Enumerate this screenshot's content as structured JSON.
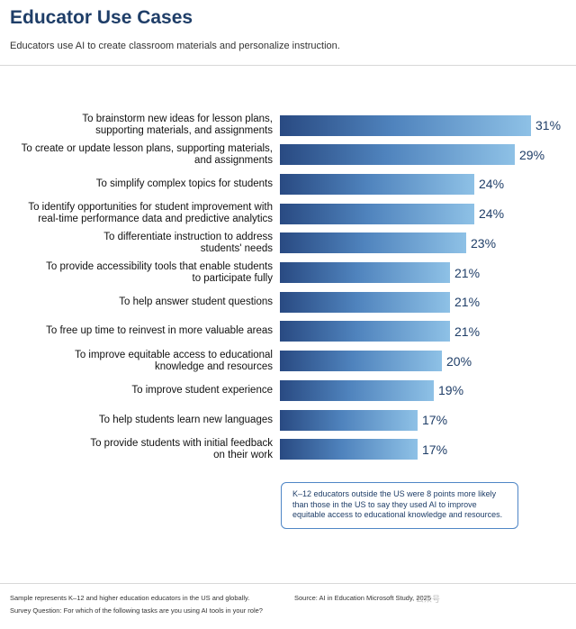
{
  "header": {
    "title": "Educator Use Cases",
    "subtitle": "Educators use AI to create classroom materials and personalize instruction."
  },
  "chart_data": {
    "type": "bar",
    "orientation": "horizontal",
    "categories": [
      "To brainstorm new ideas for lesson plans,\nsupporting materials, and assignments",
      "To create or update lesson plans, supporting materials,\nand assignments",
      "To simplify complex topics for students",
      "To identify opportunities for student improvement with\nreal-time performance data and predictive analytics",
      "To differentiate instruction to address\nstudents' needs",
      "To provide accessibility tools that enable students\nto participate fully",
      "To help answer student questions",
      "To free up time to reinvest in more valuable areas",
      "To improve equitable access to educational\nknowledge and resources",
      "To improve student experience",
      "To help students learn new languages",
      "To provide students with initial feedback\non their work"
    ],
    "values": [
      31,
      29,
      24,
      24,
      23,
      21,
      21,
      21,
      20,
      19,
      17,
      17
    ],
    "value_labels": [
      "31%",
      "29%",
      "24%",
      "24%",
      "23%",
      "21%",
      "21%",
      "21%",
      "20%",
      "19%",
      "17%",
      "17%"
    ],
    "unit": "%",
    "xlim": [
      0,
      31
    ],
    "grid": false,
    "legend": "none",
    "colors": {
      "bar_start": "#294a82",
      "bar_end": "#8ec1e6",
      "value_text": "#1f3e68"
    }
  },
  "callout": {
    "text": "K–12 educators outside the US were 8 points more likely than those in the US to say they used AI to improve equitable access to educational knowledge and resources."
  },
  "footer": {
    "sample_note": "Sample represents K–12 and higher education educators in the US and globally.",
    "survey_question": "Survey Question: For which of the following tasks are you using AI tools in your role?",
    "source": "Source: AI in Education Microsoft Study, 2025",
    "watermark": "公众号"
  }
}
